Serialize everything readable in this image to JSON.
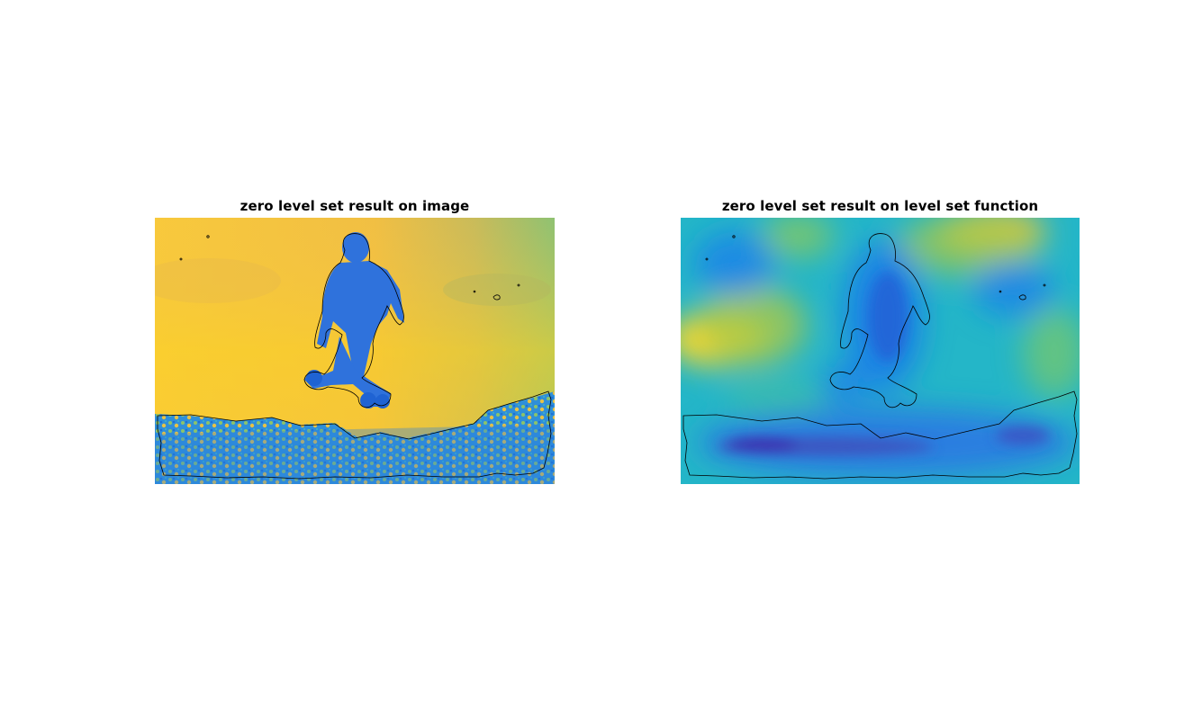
{
  "figure": {
    "panels": [
      {
        "id": "image",
        "title": "zero level set result on image"
      },
      {
        "id": "function",
        "title": "zero level set result on level set function"
      }
    ],
    "colors": {
      "colormap_low": "#3e26a8",
      "colormap_blue": "#2a7fe0",
      "colormap_cyan": "#1fb0c8",
      "colormap_green": "#7fc86a",
      "colormap_orange": "#f0b94a",
      "colormap_yellow": "#fcd020",
      "contour": "#000000"
    }
  }
}
